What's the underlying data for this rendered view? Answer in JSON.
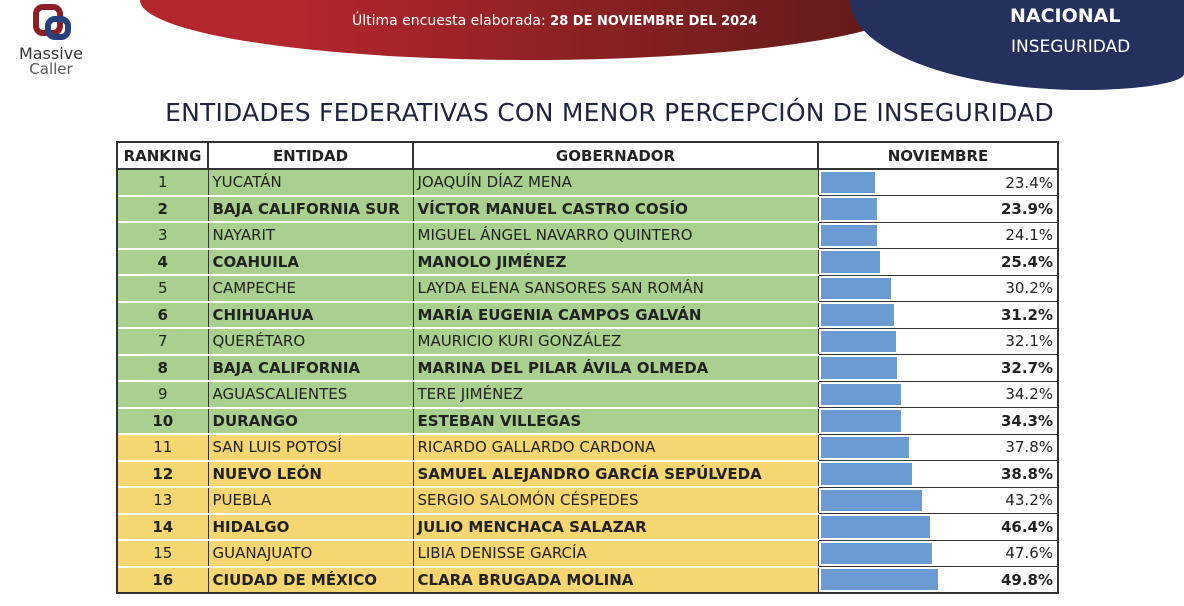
{
  "logo": {
    "line1": "Massive",
    "line2": "Caller"
  },
  "header": {
    "subtitle_prefix": "Última encuesta elaborada:",
    "subtitle_date": "28 DE NOVIEMBRE DEL 2024",
    "scope": "NACIONAL",
    "topic": "INSEGURIDAD"
  },
  "title": "ENTIDADES FEDERATIVAS CON MENOR PERCEPCIÓN DE INSEGURIDAD",
  "columns": [
    "RANKING",
    "ENTIDAD",
    "GOBERNADOR",
    "NOVIEMBRE"
  ],
  "colors": {
    "green": "#a9d08e",
    "yellow": "#f6d670",
    "bar": "#6a9bd3"
  },
  "rows": [
    {
      "rank": "1",
      "entidad": "YUCATÁN",
      "gobernador": "JOAQUÍN DÍAZ MENA",
      "value": 23.4,
      "label": "23.4%",
      "band": "g"
    },
    {
      "rank": "2",
      "entidad": "BAJA CALIFORNIA SUR",
      "gobernador": "VÍCTOR MANUEL CASTRO COSÍO",
      "value": 23.9,
      "label": "23.9%",
      "band": "g"
    },
    {
      "rank": "3",
      "entidad": "NAYARIT",
      "gobernador": "MIGUEL ÁNGEL NAVARRO QUINTERO",
      "value": 24.1,
      "label": "24.1%",
      "band": "g"
    },
    {
      "rank": "4",
      "entidad": "COAHUILA",
      "gobernador": "MANOLO JIMÉNEZ",
      "value": 25.4,
      "label": "25.4%",
      "band": "g"
    },
    {
      "rank": "5",
      "entidad": "CAMPECHE",
      "gobernador": "LAYDA ELENA SANSORES SAN ROMÁN",
      "value": 30.2,
      "label": "30.2%",
      "band": "g"
    },
    {
      "rank": "6",
      "entidad": "CHIHUAHUA",
      "gobernador": "MARÍA EUGENIA CAMPOS GALVÁN",
      "value": 31.2,
      "label": "31.2%",
      "band": "g"
    },
    {
      "rank": "7",
      "entidad": "QUERÉTARO",
      "gobernador": "MAURICIO KURI GONZÁLEZ",
      "value": 32.1,
      "label": "32.1%",
      "band": "g"
    },
    {
      "rank": "8",
      "entidad": "BAJA CALIFORNIA",
      "gobernador": "MARINA DEL PILAR ÁVILA OLMEDA",
      "value": 32.7,
      "label": "32.7%",
      "band": "g"
    },
    {
      "rank": "9",
      "entidad": "AGUASCALIENTES",
      "gobernador": "TERE JIMÉNEZ",
      "value": 34.2,
      "label": "34.2%",
      "band": "g"
    },
    {
      "rank": "10",
      "entidad": "DURANGO",
      "gobernador": "ESTEBAN VILLEGAS",
      "value": 34.3,
      "label": "34.3%",
      "band": "g"
    },
    {
      "rank": "11",
      "entidad": "SAN LUIS POTOSÍ",
      "gobernador": "RICARDO GALLARDO CARDONA",
      "value": 37.8,
      "label": "37.8%",
      "band": "y"
    },
    {
      "rank": "12",
      "entidad": "NUEVO LEÓN",
      "gobernador": "SAMUEL ALEJANDRO GARCÍA SEPÚLVEDA",
      "value": 38.8,
      "label": "38.8%",
      "band": "y"
    },
    {
      "rank": "13",
      "entidad": "PUEBLA",
      "gobernador": "SERGIO SALOMÓN CÉSPEDES",
      "value": 43.2,
      "label": "43.2%",
      "band": "y"
    },
    {
      "rank": "14",
      "entidad": "HIDALGO",
      "gobernador": "JULIO MENCHACA SALAZAR",
      "value": 46.4,
      "label": "46.4%",
      "band": "y"
    },
    {
      "rank": "15",
      "entidad": "GUANAJUATO",
      "gobernador": "LIBIA DENISSE GARCÍA",
      "value": 47.6,
      "label": "47.6%",
      "band": "y"
    },
    {
      "rank": "16",
      "entidad": "CIUDAD DE MÉXICO",
      "gobernador": "CLARA BRUGADA MOLINA",
      "value": 49.8,
      "label": "49.8%",
      "band": "y"
    }
  ]
}
